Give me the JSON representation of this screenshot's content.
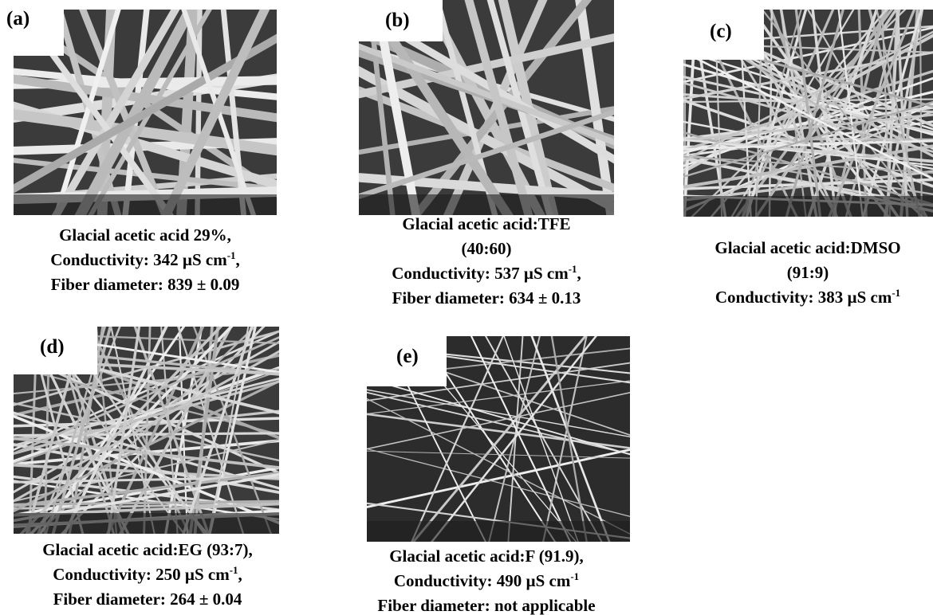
{
  "panels": [
    {
      "label": "(a)",
      "caption": [
        {
          "text": "Glacial acetic acid 29%,"
        },
        {
          "text": "Conductivity: 342 µS cm",
          "sup": "-1",
          "tail": ","
        },
        {
          "text": "Fiber diameter: 839 ± 0.09"
        }
      ]
    },
    {
      "label": "(b)",
      "caption": [
        {
          "text": "Glacial acetic acid:TFE"
        },
        {
          "text": "(40:60)"
        },
        {
          "text": "Conductivity: 537 µS cm",
          "sup": "-1",
          "tail": ","
        },
        {
          "text": "Fiber diameter: 634 ± 0.13"
        }
      ]
    },
    {
      "label": "(c)",
      "caption": [
        {
          "text": "Glacial acetic acid:DMSO"
        },
        {
          "text": "(91:9)"
        },
        {
          "text": "Conductivity: 383 µS cm",
          "sup": "-1"
        }
      ]
    },
    {
      "label": "(d)",
      "caption": [
        {
          "text": "Glacial acetic acid:EG (93:7),"
        },
        {
          "text": "Conductivity: 250 µS cm",
          "sup": "-1",
          "tail": ","
        },
        {
          "text": "Fiber diameter: 264 ± 0.04"
        }
      ]
    },
    {
      "label": "(e)",
      "caption": [
        {
          "text": "Glacial acetic acid:F (91.9),"
        },
        {
          "text": "Conductivity: 490 µS cm",
          "sup": "-1"
        },
        {
          "text": "Fiber diameter: not applicable"
        }
      ]
    }
  ]
}
